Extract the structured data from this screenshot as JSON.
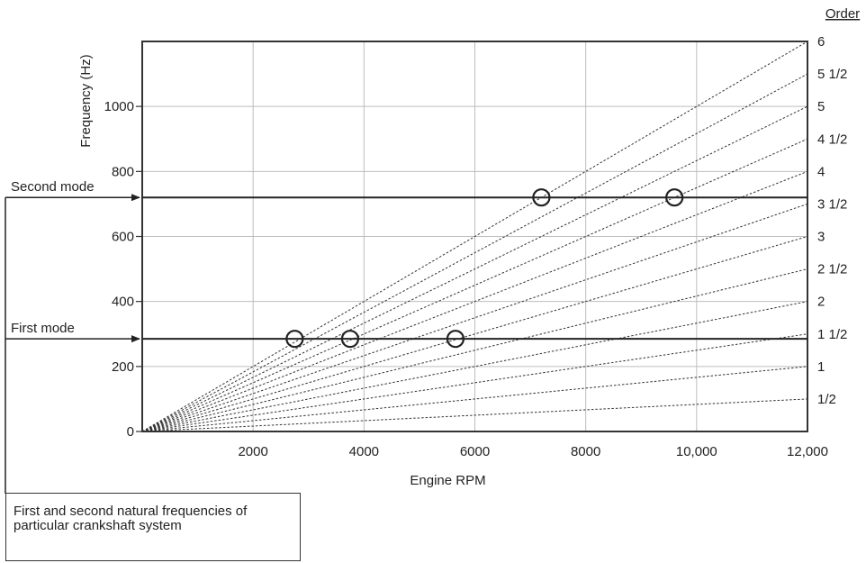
{
  "chart_data": {
    "type": "line",
    "xlabel": "Engine RPM",
    "ylabel": "Frequency (Hz)",
    "order_title": "Order",
    "xlim": [
      0,
      12000
    ],
    "ylim": [
      0,
      1200
    ],
    "x_ticks": [
      {
        "value": 2000,
        "label": "2000"
      },
      {
        "value": 4000,
        "label": "4000"
      },
      {
        "value": 6000,
        "label": "6000"
      },
      {
        "value": 8000,
        "label": "8000"
      },
      {
        "value": 10000,
        "label": "10,000"
      },
      {
        "value": 12000,
        "label": "12,000"
      }
    ],
    "y_ticks": [
      {
        "value": 0,
        "label": "0"
      },
      {
        "value": 200,
        "label": "200"
      },
      {
        "value": 400,
        "label": "400"
      },
      {
        "value": 600,
        "label": "600"
      },
      {
        "value": 800,
        "label": "800"
      },
      {
        "value": 1000,
        "label": "1000"
      }
    ],
    "grid": true,
    "orders": [
      {
        "order": 0.5,
        "label": "1/2"
      },
      {
        "order": 1,
        "label": "1"
      },
      {
        "order": 1.5,
        "label": "1 1/2"
      },
      {
        "order": 2,
        "label": "2"
      },
      {
        "order": 2.5,
        "label": "2 1/2"
      },
      {
        "order": 3,
        "label": "3"
      },
      {
        "order": 3.5,
        "label": "3 1/2"
      },
      {
        "order": 4,
        "label": "4"
      },
      {
        "order": 4.5,
        "label": "4 1/2"
      },
      {
        "order": 5,
        "label": "5"
      },
      {
        "order": 5.5,
        "label": "5 1/2"
      },
      {
        "order": 6,
        "label": "6"
      }
    ],
    "modes": [
      {
        "name": "First mode",
        "frequency": 285
      },
      {
        "name": "Second mode",
        "frequency": 720
      }
    ],
    "intersections": [
      {
        "rpm": 2750,
        "frequency": 285
      },
      {
        "rpm": 3750,
        "frequency": 285
      },
      {
        "rpm": 5650,
        "frequency": 285
      },
      {
        "rpm": 7200,
        "frequency": 720
      },
      {
        "rpm": 9600,
        "frequency": 720
      }
    ]
  },
  "caption": "First and second natural frequencies of particular crankshaft system"
}
